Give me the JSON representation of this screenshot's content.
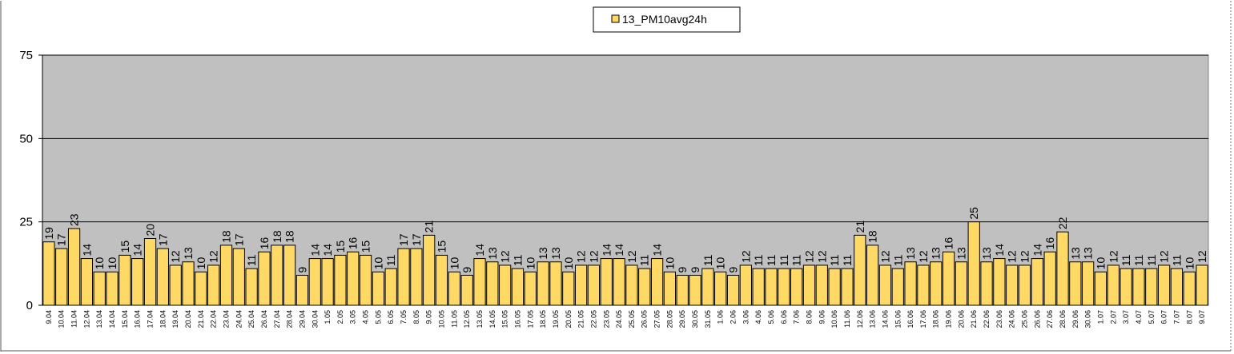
{
  "chart_data": {
    "type": "bar",
    "title": "",
    "xlabel": "",
    "ylabel": "",
    "ylim": [
      0,
      75
    ],
    "yticks": [
      0,
      25,
      50,
      75
    ],
    "grid": "horizontal",
    "legend_position": "top-center",
    "colors": {
      "bar_fill": "#FFD966",
      "bar_stroke": "#000000",
      "plot_background": "#C0C0C0",
      "grid_line": "#000000"
    },
    "categories": [
      "9.04",
      "10.04",
      "11.04",
      "12.04",
      "13.04",
      "14.04",
      "15.04",
      "16.04",
      "17.04",
      "18.04",
      "19.04",
      "20.04",
      "21.04",
      "22.04",
      "23.04",
      "24.04",
      "25.04",
      "26.04",
      "27.04",
      "28.04",
      "29.04",
      "30.04",
      "1.05",
      "2.05",
      "3.05",
      "4.05",
      "5.05",
      "6.05",
      "7.05",
      "8.05",
      "9.05",
      "10.05",
      "11.05",
      "12.05",
      "13.05",
      "14.05",
      "15.05",
      "16.05",
      "17.05",
      "18.05",
      "19.05",
      "20.05",
      "21.05",
      "22.05",
      "23.05",
      "24.05",
      "25.05",
      "26.05",
      "27.05",
      "28.05",
      "29.05",
      "30.05",
      "31.05",
      "1.06",
      "2.06",
      "3.06",
      "4.06",
      "5.06",
      "6.06",
      "7.06",
      "8.06",
      "9.06",
      "10.06",
      "11.06",
      "12.06",
      "13.06",
      "14.06",
      "15.06",
      "16.06",
      "17.06",
      "18.06",
      "19.06",
      "20.06",
      "21.06",
      "22.06",
      "23.06",
      "24.06",
      "25.06",
      "26.06",
      "27.06",
      "28.06",
      "29.06",
      "30.06",
      "1.07",
      "2.07",
      "3.07",
      "4.07",
      "5.07",
      "6.07",
      "7.07",
      "8.07",
      "9.07"
    ],
    "series": [
      {
        "name": "13_PM10avg24h",
        "values": [
          19,
          17,
          23,
          14,
          10,
          10,
          15,
          14,
          20,
          17,
          12,
          13,
          10,
          12,
          18,
          17,
          11,
          16,
          18,
          18,
          9,
          14,
          14,
          15,
          16,
          15,
          10,
          11,
          17,
          17,
          21,
          15,
          10,
          9,
          14,
          13,
          12,
          11,
          10,
          13,
          13,
          10,
          12,
          12,
          14,
          14,
          12,
          11,
          14,
          10,
          9,
          9,
          11,
          10,
          9,
          12,
          11,
          11,
          11,
          11,
          12,
          12,
          11,
          11,
          21,
          18,
          12,
          11,
          13,
          12,
          13,
          16,
          13,
          25,
          13,
          14,
          12,
          12,
          14,
          16,
          22,
          13,
          13,
          10,
          12,
          11,
          11,
          11,
          12,
          11,
          10,
          12
        ]
      }
    ]
  }
}
